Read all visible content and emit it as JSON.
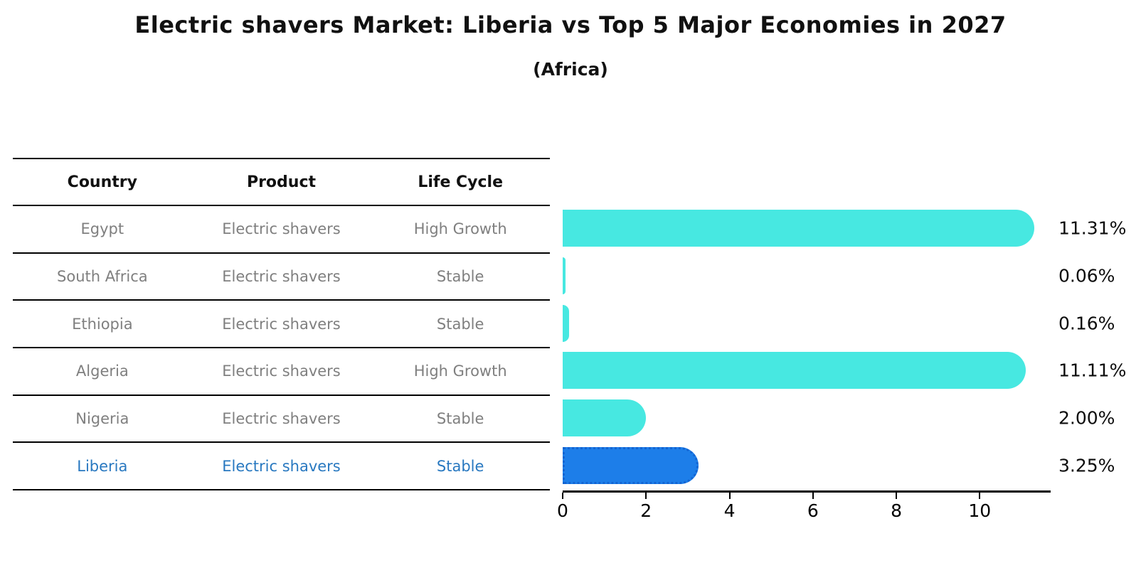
{
  "header": {
    "title": "Electric shavers Market: Liberia vs Top 5 Major Economies in 2027",
    "subtitle": "(Africa)"
  },
  "table": {
    "headers": [
      "Country",
      "Product",
      "Life Cycle"
    ],
    "rows": [
      {
        "country": "Egypt",
        "product": "Electric shavers",
        "life_cycle": "High Growth"
      },
      {
        "country": "South Africa",
        "product": "Electric shavers",
        "life_cycle": "Stable"
      },
      {
        "country": "Ethiopia",
        "product": "Electric shavers",
        "life_cycle": "Stable"
      },
      {
        "country": "Algeria",
        "product": "Electric shavers",
        "life_cycle": "High Growth"
      },
      {
        "country": "Nigeria",
        "product": "Electric shavers",
        "life_cycle": "Stable"
      },
      {
        "country": "Liberia",
        "product": "Electric shavers",
        "life_cycle": "Stable"
      }
    ],
    "highlighted_country": "Liberia"
  },
  "chart_data": {
    "type": "bar",
    "orientation": "horizontal",
    "title": "Electric shavers Market: Liberia vs Top 5 Major Economies in 2027",
    "subtitle": "(Africa)",
    "categories": [
      "Egypt",
      "South Africa",
      "Ethiopia",
      "Algeria",
      "Nigeria",
      "Liberia"
    ],
    "values": [
      11.31,
      0.06,
      0.16,
      11.11,
      2.0,
      3.25
    ],
    "value_labels": [
      "11.31%",
      "0.06%",
      "0.16%",
      "11.11%",
      "2.00%",
      "3.25%"
    ],
    "highlight_index": 5,
    "xlim": [
      0,
      11.7
    ],
    "x_ticks": [
      0,
      2,
      4,
      6,
      8,
      10
    ],
    "x_tick_labels": [
      "0",
      "2",
      "4",
      "6",
      "8",
      "10"
    ],
    "grid": false,
    "legend": false,
    "colors": {
      "bar": "#47E8E1",
      "highlight_bar": "#1D7EE9",
      "highlight_bar_border": "#1364D2",
      "highlight_text": "#2878C0",
      "row_text": "#7F7F7F",
      "axis": "#000000"
    }
  }
}
